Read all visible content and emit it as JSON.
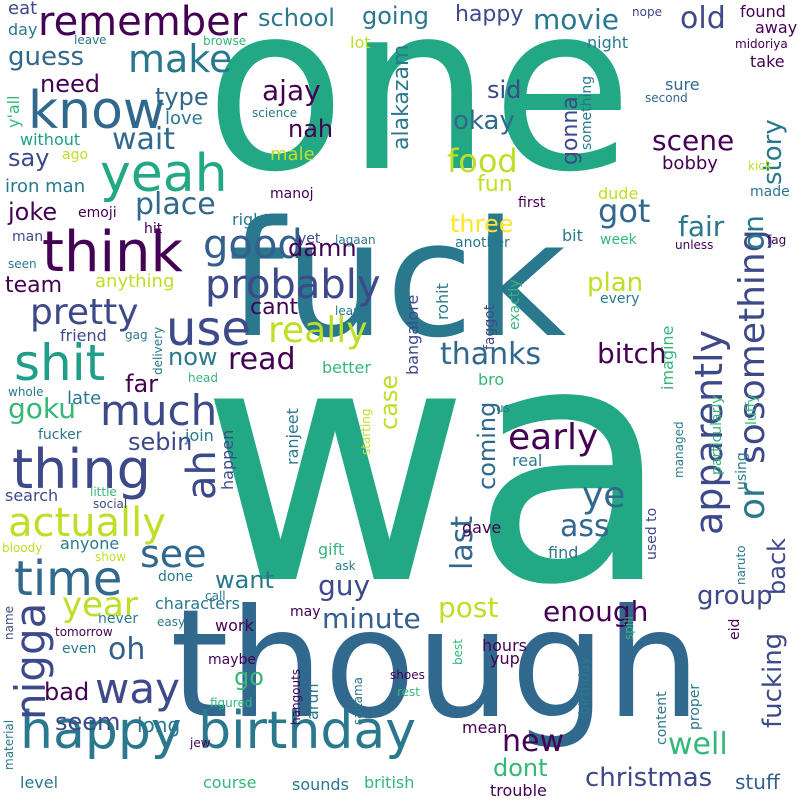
{
  "palette": {
    "background": "#ffffff",
    "big_green": "#22a884",
    "teal_blue": "#2a788e",
    "dark_blue": "#31688e",
    "purple": "#440154",
    "indigo": "#3e4989",
    "navy": "#355f8d",
    "green": "#35b779",
    "lime": "#bddf26",
    "yellow": "#fde725",
    "cyan": "#1f9e89"
  },
  "words": [
    {
      "id": "one",
      "text": "one",
      "color": "#22a884"
    },
    {
      "id": "wa",
      "text": "wa",
      "color": "#22a884"
    },
    {
      "id": "fuck",
      "text": "fuck",
      "color": "#2a788e"
    },
    {
      "id": "though",
      "text": "though",
      "color": "#31688e"
    },
    {
      "id": "know",
      "text": "know",
      "color": "#31688e"
    },
    {
      "id": "yeah",
      "text": "yeah",
      "color": "#22a884"
    },
    {
      "id": "think",
      "text": "think",
      "color": "#440154"
    },
    {
      "id": "shit",
      "text": "shit",
      "color": "#1f9e89"
    },
    {
      "id": "thing",
      "text": "thing",
      "color": "#3e4989"
    },
    {
      "id": "time",
      "text": "time",
      "color": "#31688e"
    },
    {
      "id": "happy_birthday",
      "text": "happy birthday",
      "color": "#2a788e"
    },
    {
      "id": "actually",
      "text": "actually",
      "color": "#bddf26"
    },
    {
      "id": "remember",
      "text": "remember",
      "color": "#440154"
    },
    {
      "id": "make",
      "text": "make",
      "color": "#2a788e"
    },
    {
      "id": "good",
      "text": "good",
      "color": "#355f8d"
    },
    {
      "id": "use",
      "text": "use",
      "color": "#3e4989"
    },
    {
      "id": "much",
      "text": "much",
      "color": "#3e4989"
    },
    {
      "id": "probably",
      "text": "probably",
      "color": "#3e4989"
    },
    {
      "id": "pretty",
      "text": "pretty",
      "color": "#3e4989"
    },
    {
      "id": "really",
      "text": "really",
      "color": "#bddf26"
    },
    {
      "id": "ah",
      "text": "ah",
      "color": "#3e4989"
    },
    {
      "id": "see",
      "text": "see",
      "color": "#31688e"
    },
    {
      "id": "year",
      "text": "year",
      "color": "#bddf26"
    },
    {
      "id": "nigga",
      "text": "nigga",
      "color": "#3e4989"
    },
    {
      "id": "way",
      "text": "way",
      "color": "#3e4989"
    },
    {
      "id": "oh",
      "text": "oh",
      "color": "#355f8d"
    },
    {
      "id": "apparently",
      "text": "apparently",
      "color": "#3e4989"
    },
    {
      "id": "something",
      "text": "something",
      "color": "#3e4989"
    },
    {
      "id": "or",
      "text": "or",
      "color": "#2a788e"
    },
    {
      "id": "so",
      "text": "so",
      "color": "#3e4989"
    },
    {
      "id": "on",
      "text": "on",
      "color": "#2a788e"
    },
    {
      "id": "early",
      "text": "early",
      "color": "#440154"
    },
    {
      "id": "ye",
      "text": "ye",
      "color": "#31688e"
    },
    {
      "id": "food",
      "text": "food",
      "color": "#bddf26"
    },
    {
      "id": "got",
      "text": "got",
      "color": "#31688e"
    },
    {
      "id": "wait",
      "text": "wait",
      "color": "#31688e"
    },
    {
      "id": "place",
      "text": "place",
      "color": "#31688e"
    },
    {
      "id": "guess",
      "text": "guess",
      "color": "#31688e"
    },
    {
      "id": "need",
      "text": "need",
      "color": "#440154"
    },
    {
      "id": "school",
      "text": "school",
      "color": "#2a788e"
    },
    {
      "id": "going",
      "text": "going",
      "color": "#2a788e"
    },
    {
      "id": "movie",
      "text": "movie",
      "color": "#2a788e"
    },
    {
      "id": "old",
      "text": "old",
      "color": "#3e4989"
    },
    {
      "id": "happy",
      "text": "happy",
      "color": "#3e4989"
    },
    {
      "id": "story",
      "text": "story",
      "color": "#2a788e"
    },
    {
      "id": "scene",
      "text": "scene",
      "color": "#440154"
    },
    {
      "id": "okay",
      "text": "okay",
      "color": "#31688e"
    },
    {
      "id": "sid",
      "text": "sid",
      "color": "#3e4989"
    },
    {
      "id": "ajay",
      "text": "ajay",
      "color": "#440154"
    },
    {
      "id": "nah",
      "text": "nah",
      "color": "#440154"
    },
    {
      "id": "type",
      "text": "type",
      "color": "#31688e"
    },
    {
      "id": "love",
      "text": "love",
      "color": "#2a788e"
    },
    {
      "id": "say",
      "text": "say",
      "color": "#3e4989"
    },
    {
      "id": "joke",
      "text": "joke",
      "color": "#440154"
    },
    {
      "id": "team",
      "text": "team",
      "color": "#440154"
    },
    {
      "id": "three",
      "text": "three",
      "color": "#fde725"
    },
    {
      "id": "fair",
      "text": "fair",
      "color": "#2a788e"
    },
    {
      "id": "plan",
      "text": "plan",
      "color": "#bddf26"
    },
    {
      "id": "fun",
      "text": "fun",
      "color": "#bddf26"
    },
    {
      "id": "thanks",
      "text": "thanks",
      "color": "#31688e"
    },
    {
      "id": "bitch",
      "text": "bitch",
      "color": "#440154"
    },
    {
      "id": "read",
      "text": "read",
      "color": "#440154"
    },
    {
      "id": "now",
      "text": "now",
      "color": "#2a788e"
    },
    {
      "id": "far",
      "text": "far",
      "color": "#440154"
    },
    {
      "id": "goku",
      "text": "goku",
      "color": "#35b779"
    },
    {
      "id": "sebin",
      "text": "sebin",
      "color": "#3e4989"
    },
    {
      "id": "damn",
      "text": "damn",
      "color": "#440154"
    },
    {
      "id": "cant",
      "text": "cant",
      "color": "#440154"
    },
    {
      "id": "case",
      "text": "case",
      "color": "#bddf26"
    },
    {
      "id": "coming",
      "text": "coming",
      "color": "#31688e"
    },
    {
      "id": "last",
      "text": "last",
      "color": "#31688e"
    },
    {
      "id": "ass",
      "text": "ass",
      "color": "#31688e"
    },
    {
      "id": "guy",
      "text": "guy",
      "color": "#3e4989"
    },
    {
      "id": "want",
      "text": "want",
      "color": "#2a788e"
    },
    {
      "id": "post",
      "text": "post",
      "color": "#bddf26"
    },
    {
      "id": "minute",
      "text": "minute",
      "color": "#355f8d"
    },
    {
      "id": "enough",
      "text": "enough",
      "color": "#440154"
    },
    {
      "id": "group",
      "text": "group",
      "color": "#3e4989"
    },
    {
      "id": "back",
      "text": "back",
      "color": "#3e4989"
    },
    {
      "id": "fucking",
      "text": "fucking",
      "color": "#3e4989"
    },
    {
      "id": "new",
      "text": "new",
      "color": "#440154"
    },
    {
      "id": "well",
      "text": "well",
      "color": "#35b779"
    },
    {
      "id": "dont",
      "text": "dont",
      "color": "#35b779"
    },
    {
      "id": "christmas",
      "text": "christmas",
      "color": "#3e4989"
    },
    {
      "id": "stuff",
      "text": "stuff",
      "color": "#355f8d"
    },
    {
      "id": "bad",
      "text": "bad",
      "color": "#440154"
    },
    {
      "id": "seem",
      "text": "seem",
      "color": "#3e4989"
    },
    {
      "id": "go",
      "text": "go",
      "color": "#35b779"
    },
    {
      "id": "long",
      "text": "long",
      "color": "#2a788e"
    },
    {
      "id": "eat",
      "text": "eat",
      "color": "#3e4989"
    },
    {
      "id": "day",
      "text": "day",
      "color": "#2a788e"
    },
    {
      "id": "yall",
      "text": "y'all",
      "color": "#35b779"
    },
    {
      "id": "without",
      "text": "without",
      "color": "#1f9e89"
    },
    {
      "id": "ago",
      "text": "ago",
      "color": "#bddf26"
    },
    {
      "id": "iron_man",
      "text": "iron man",
      "color": "#2a788e"
    },
    {
      "id": "emoji",
      "text": "emoji",
      "color": "#440154"
    },
    {
      "id": "man",
      "text": "man",
      "color": "#3e4989"
    },
    {
      "id": "seen",
      "text": "seen",
      "color": "#2a788e"
    },
    {
      "id": "friend",
      "text": "friend",
      "color": "#3e4989"
    },
    {
      "id": "anything",
      "text": "anything",
      "color": "#bddf26"
    },
    {
      "id": "male",
      "text": "male",
      "color": "#bddf26"
    },
    {
      "id": "manoj",
      "text": "manoj",
      "color": "#440154"
    },
    {
      "id": "right",
      "text": "right",
      "color": "#2a788e"
    },
    {
      "id": "hit",
      "text": "hit",
      "color": "#440154"
    },
    {
      "id": "yet",
      "text": "yet",
      "color": "#3e4989"
    },
    {
      "id": "lagaan",
      "text": "lagaan",
      "color": "#2a788e"
    },
    {
      "id": "science",
      "text": "science",
      "color": "#2a788e"
    },
    {
      "id": "leave",
      "text": "leave",
      "color": "#2a788e"
    },
    {
      "id": "browse",
      "text": "browse",
      "color": "#35b779"
    },
    {
      "id": "lot",
      "text": "lot",
      "color": "#bddf26"
    },
    {
      "id": "alakazam",
      "text": "alakazam",
      "color": "#2a788e"
    },
    {
      "id": "gonna",
      "text": "gonna",
      "color": "#3e4989"
    },
    {
      "id": "something_small",
      "text": "something",
      "color": "#2a788e"
    },
    {
      "id": "first",
      "text": "first",
      "color": "#440154"
    },
    {
      "id": "dude",
      "text": "dude",
      "color": "#bddf26"
    },
    {
      "id": "bobby",
      "text": "bobby",
      "color": "#440154"
    },
    {
      "id": "kick",
      "text": "kick",
      "color": "#bddf26"
    },
    {
      "id": "made",
      "text": "made",
      "color": "#2a788e"
    },
    {
      "id": "sure",
      "text": "sure",
      "color": "#31688e"
    },
    {
      "id": "second",
      "text": "second",
      "color": "#31688e"
    },
    {
      "id": "take",
      "text": "take",
      "color": "#440154"
    },
    {
      "id": "midoriya",
      "text": "midoriya",
      "color": "#440154"
    },
    {
      "id": "found",
      "text": "found",
      "color": "#440154"
    },
    {
      "id": "away",
      "text": "away",
      "color": "#440154"
    },
    {
      "id": "nope",
      "text": "nope",
      "color": "#3e4989"
    },
    {
      "id": "night",
      "text": "night",
      "color": "#2a788e"
    },
    {
      "id": "another",
      "text": "another",
      "color": "#2a788e"
    },
    {
      "id": "bit",
      "text": "bit",
      "color": "#2a788e"
    },
    {
      "id": "week",
      "text": "week",
      "color": "#35b779"
    },
    {
      "id": "unless",
      "text": "unless",
      "color": "#440154"
    },
    {
      "id": "fag",
      "text": "fag",
      "color": "#440154"
    },
    {
      "id": "every",
      "text": "every",
      "color": "#2a788e"
    },
    {
      "id": "exactly",
      "text": "exactly",
      "color": "#35b779"
    },
    {
      "id": "faggot",
      "text": "faggot",
      "color": "#3e4989"
    },
    {
      "id": "rohit",
      "text": "rohit",
      "color": "#2a788e"
    },
    {
      "id": "bangalore",
      "text": "bangalore",
      "color": "#3e4989"
    },
    {
      "id": "imagine",
      "text": "imagine",
      "color": "#35b779"
    },
    {
      "id": "luffy",
      "text": "luffy",
      "color": "#35b779"
    },
    {
      "id": "particularly",
      "text": "particularly",
      "color": "#35b779"
    },
    {
      "id": "using",
      "text": "using",
      "color": "#2a788e"
    },
    {
      "id": "managed",
      "text": "managed",
      "color": "#2a788e"
    },
    {
      "id": "naruto",
      "text": "naruto",
      "color": "#2a788e"
    },
    {
      "id": "used_to",
      "text": "used to",
      "color": "#3e4989"
    },
    {
      "id": "bro",
      "text": "bro",
      "color": "#35b779"
    },
    {
      "id": "us",
      "text": "us",
      "color": "#2a788e"
    },
    {
      "id": "starting",
      "text": "starting",
      "color": "#bddf26"
    },
    {
      "id": "real",
      "text": "real",
      "color": "#2a788e"
    },
    {
      "id": "ranjeet",
      "text": "ranjeet",
      "color": "#2a788e"
    },
    {
      "id": "better",
      "text": "better",
      "color": "#35b779"
    },
    {
      "id": "learn",
      "text": "learn",
      "color": "#2a788e"
    },
    {
      "id": "delivery",
      "text": "delivery",
      "color": "#2a788e"
    },
    {
      "id": "gag",
      "text": "gag",
      "color": "#2a788e"
    },
    {
      "id": "head",
      "text": "head",
      "color": "#35b779"
    },
    {
      "id": "whole",
      "text": "whole",
      "color": "#2a788e"
    },
    {
      "id": "late",
      "text": "late",
      "color": "#2a788e"
    },
    {
      "id": "fucker",
      "text": "fucker",
      "color": "#2a788e"
    },
    {
      "id": "join",
      "text": "join",
      "color": "#2a788e"
    },
    {
      "id": "search",
      "text": "search",
      "color": "#3e4989"
    },
    {
      "id": "little",
      "text": "little",
      "color": "#35b779"
    },
    {
      "id": "social",
      "text": "social",
      "color": "#3e4989"
    },
    {
      "id": "bloody",
      "text": "bloody",
      "color": "#bddf26"
    },
    {
      "id": "anyone",
      "text": "anyone",
      "color": "#2a788e"
    },
    {
      "id": "show",
      "text": "show",
      "color": "#bddf26"
    },
    {
      "id": "done",
      "text": "done",
      "color": "#2a788e"
    },
    {
      "id": "happen",
      "text": "happen",
      "color": "#3e4989"
    },
    {
      "id": "gave",
      "text": "gave",
      "color": "#440154"
    },
    {
      "id": "find",
      "text": "find",
      "color": "#2a788e"
    },
    {
      "id": "gift",
      "text": "gift",
      "color": "#35b779"
    },
    {
      "id": "ask",
      "text": "ask",
      "color": "#2a788e"
    },
    {
      "id": "call",
      "text": "call",
      "color": "#2a788e"
    },
    {
      "id": "characters",
      "text": "characters",
      "color": "#2a788e"
    },
    {
      "id": "easy",
      "text": "easy",
      "color": "#2a788e"
    },
    {
      "id": "work",
      "text": "work",
      "color": "#440154"
    },
    {
      "id": "never",
      "text": "never",
      "color": "#2a788e"
    },
    {
      "id": "may",
      "text": "may",
      "color": "#440154"
    },
    {
      "id": "tomorrow",
      "text": "tomorrow",
      "color": "#440154"
    },
    {
      "id": "name",
      "text": "name",
      "color": "#3e4989"
    },
    {
      "id": "even",
      "text": "even",
      "color": "#2a788e"
    },
    {
      "id": "maybe",
      "text": "maybe",
      "color": "#440154"
    },
    {
      "id": "figured",
      "text": "figured",
      "color": "#35b779"
    },
    {
      "id": "hangouts",
      "text": "hangouts",
      "color": "#440154"
    },
    {
      "id": "arun",
      "text": "arun",
      "color": "#2a788e"
    },
    {
      "id": "saitama",
      "text": "saitama",
      "color": "#2a788e"
    },
    {
      "id": "shoes",
      "text": "shoes",
      "color": "#440154"
    },
    {
      "id": "rest",
      "text": "rest",
      "color": "#35b779"
    },
    {
      "id": "best",
      "text": "best",
      "color": "#35b779"
    },
    {
      "id": "hours",
      "text": "hours",
      "color": "#440154"
    },
    {
      "id": "yup",
      "text": "yup",
      "color": "#440154"
    },
    {
      "id": "mean",
      "text": "mean",
      "color": "#440154"
    },
    {
      "id": "birthday_small",
      "text": "birthday",
      "color": "#2a788e"
    },
    {
      "id": "content",
      "text": "content",
      "color": "#2a788e"
    },
    {
      "id": "proper",
      "text": "proper",
      "color": "#2a788e"
    },
    {
      "id": "spill",
      "text": "spill",
      "color": "#35b779"
    },
    {
      "id": "eid",
      "text": "eid",
      "color": "#440154"
    },
    {
      "id": "jew",
      "text": "jew",
      "color": "#440154"
    },
    {
      "id": "material",
      "text": "material",
      "color": "#2a788e"
    },
    {
      "id": "level",
      "text": "level",
      "color": "#2a788e"
    },
    {
      "id": "course",
      "text": "course",
      "color": "#35b779"
    },
    {
      "id": "sounds",
      "text": "sounds",
      "color": "#2a788e"
    },
    {
      "id": "british",
      "text": "british",
      "color": "#35b779"
    },
    {
      "id": "trouble",
      "text": "trouble",
      "color": "#440154"
    }
  ]
}
